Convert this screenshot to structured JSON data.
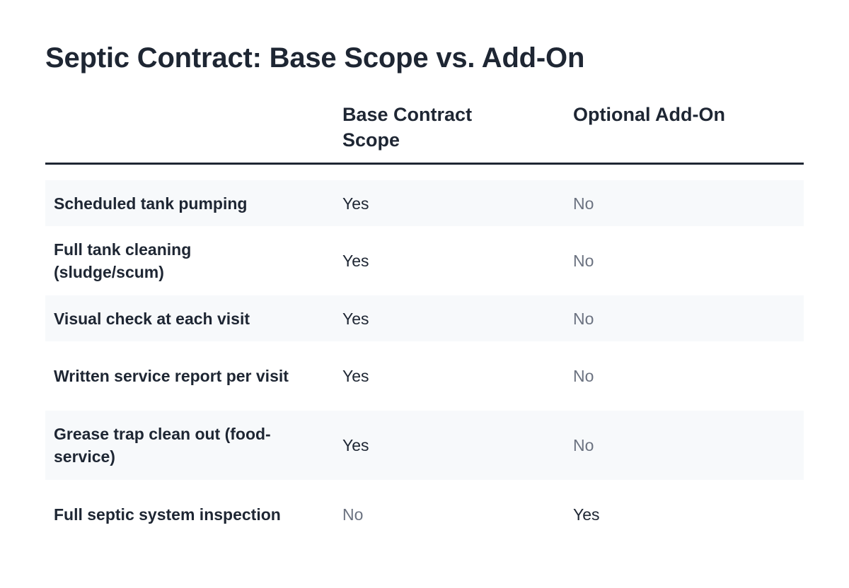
{
  "title": "Septic Contract: Base Scope vs. Add-On",
  "table": {
    "headers": {
      "feature": "",
      "base": "Base Contract Scope",
      "addon": "Optional Add-On"
    },
    "rows": [
      {
        "feature": "Scheduled tank pumping",
        "base": "Yes",
        "addon": "No"
      },
      {
        "feature": "Full tank cleaning (sludge/scum)",
        "base": "Yes",
        "addon": "No"
      },
      {
        "feature": "Visual check at each visit",
        "base": "Yes",
        "addon": "No"
      },
      {
        "feature": "Written service report per visit",
        "base": "Yes",
        "addon": "No"
      },
      {
        "feature": "Grease trap clean out (food-service)",
        "base": "Yes",
        "addon": "No"
      },
      {
        "feature": "Full septic system inspection",
        "base": "No",
        "addon": "Yes"
      }
    ]
  },
  "colors": {
    "text": "#1e2633",
    "muted": "#6b7280",
    "row_shade": "#f7f9fb"
  }
}
